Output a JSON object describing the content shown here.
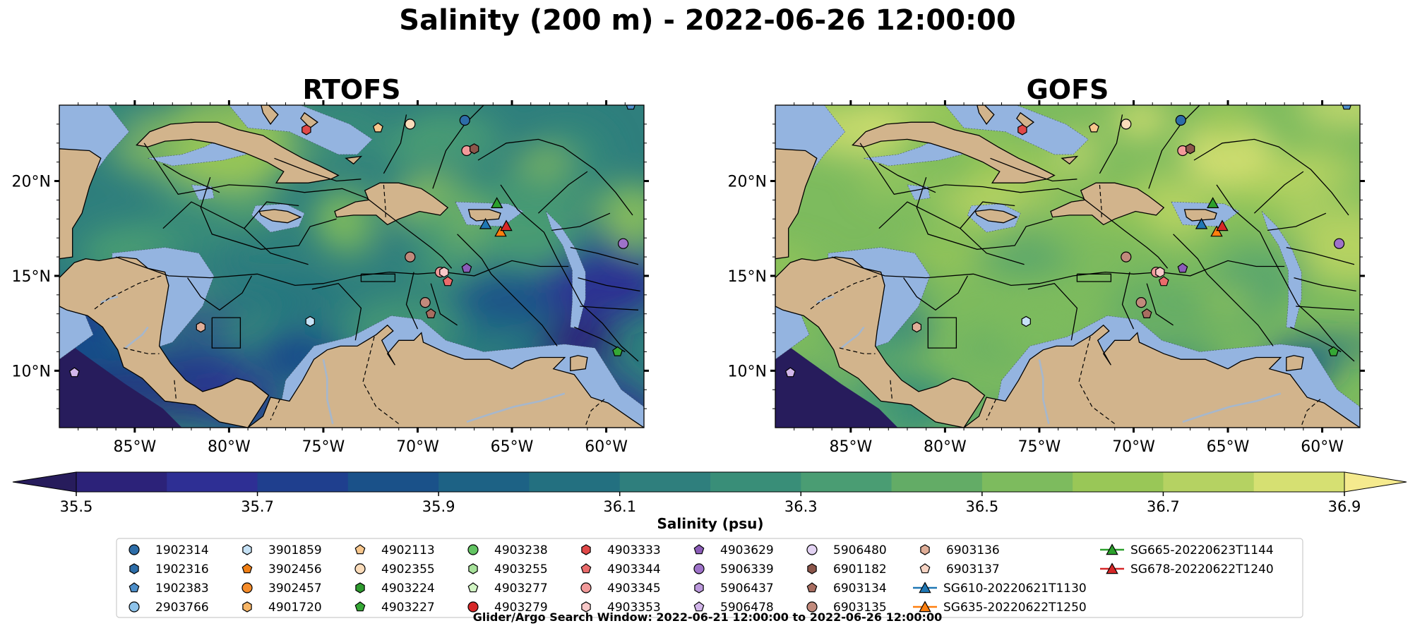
{
  "title": "Salinity (200 m) - 2022-06-26 12:00:00",
  "footer": "Glider/Argo Search Window: 2022-06-21 12:00:00 to 2022-06-26 12:00:00",
  "colors": {
    "land": "#d2b48c",
    "shelf": "#94b4e0",
    "ocean_deep": "#271c5c",
    "rivers": "#a6b7cc"
  },
  "chart_data": [
    {
      "type": "heatmap",
      "title": "RTOFS",
      "xlabel": "",
      "ylabel": "",
      "xlim": [
        -89,
        -58
      ],
      "ylim": [
        7,
        24
      ],
      "xticks": [
        -85,
        -80,
        -75,
        -70,
        -65,
        -60
      ],
      "xtick_labels": [
        "85°W",
        "80°W",
        "75°W",
        "70°W",
        "65°W",
        "60°W"
      ],
      "yticks": [
        10,
        15,
        20
      ],
      "ytick_labels": [
        "10°N",
        "15°N",
        "20°N"
      ],
      "grid": false
    },
    {
      "type": "heatmap",
      "title": "GOFS",
      "xlabel": "",
      "ylabel": "",
      "xlim": [
        -89,
        -58
      ],
      "ylim": [
        7,
        24
      ],
      "xticks": [
        -85,
        -80,
        -75,
        -70,
        -65,
        -60
      ],
      "xtick_labels": [
        "85°W",
        "80°W",
        "75°W",
        "70°W",
        "65°W",
        "60°W"
      ],
      "yticks": [
        10,
        15,
        20
      ],
      "ytick_labels": [
        "10°N",
        "15°N",
        "20°N"
      ],
      "grid": false
    }
  ],
  "colorbar": {
    "label": "Salinity (psu)",
    "min": 35.5,
    "max": 36.9,
    "step": 0.1,
    "ticks": [
      35.5,
      35.7,
      35.9,
      36.1,
      36.3,
      36.5,
      36.7,
      36.9
    ],
    "tick_labels": [
      "35.5",
      "35.7",
      "35.9",
      "36.1",
      "36.3",
      "36.5",
      "36.7",
      "36.9"
    ],
    "extend": "both",
    "colors": [
      "#2c2279",
      "#2e2f94",
      "#1f3f8e",
      "#1a5189",
      "#1d6285",
      "#237080",
      "#2f7f7d",
      "#398e78",
      "#4a9d73",
      "#63ac66",
      "#7dbb5e",
      "#99c757",
      "#b5d262",
      "#d6e072"
    ],
    "under_color": "#271c5c",
    "over_color": "#f5ea8e"
  },
  "legend": {
    "placement": "bottom",
    "ncol": 9,
    "entries": [
      {
        "label": "1902314",
        "marker": "circle",
        "color": "#2d6da8"
      },
      {
        "label": "1902316",
        "marker": "hexagon",
        "color": "#2d6da8"
      },
      {
        "label": "1902383",
        "marker": "pentagon",
        "color": "#4d8ec9"
      },
      {
        "label": "2903766",
        "marker": "circle",
        "color": "#8ec3ea"
      },
      {
        "label": "3901859",
        "marker": "hexagon",
        "color": "#c6e2f6"
      },
      {
        "label": "3902456",
        "marker": "pentagon",
        "color": "#f07f15"
      },
      {
        "label": "3902457",
        "marker": "circle",
        "color": "#f58c2a"
      },
      {
        "label": "4901720",
        "marker": "hexagon",
        "color": "#f7b566"
      },
      {
        "label": "4902113",
        "marker": "pentagon",
        "color": "#f8c78d"
      },
      {
        "label": "4902355",
        "marker": "circle",
        "color": "#fbdcba"
      },
      {
        "label": "4903224",
        "marker": "hexagon",
        "color": "#2e9b2e"
      },
      {
        "label": "4903227",
        "marker": "pentagon",
        "color": "#35a835"
      },
      {
        "label": "4903238",
        "marker": "circle",
        "color": "#62c462"
      },
      {
        "label": "4903255",
        "marker": "hexagon",
        "color": "#a7e29a"
      },
      {
        "label": "4903277",
        "marker": "pentagon",
        "color": "#d2f5c4"
      },
      {
        "label": "4903279",
        "marker": "circle",
        "color": "#d62728"
      },
      {
        "label": "4903333",
        "marker": "hexagon",
        "color": "#e04848"
      },
      {
        "label": "4903344",
        "marker": "pentagon",
        "color": "#ea6b6b"
      },
      {
        "label": "4903345",
        "marker": "circle",
        "color": "#f29a9a"
      },
      {
        "label": "4903353",
        "marker": "hexagon",
        "color": "#f8c8c8"
      },
      {
        "label": "4903629",
        "marker": "pentagon",
        "color": "#8b5cb8"
      },
      {
        "label": "5906339",
        "marker": "circle",
        "color": "#9e72c9"
      },
      {
        "label": "5906437",
        "marker": "hexagon",
        "color": "#bb98dc"
      },
      {
        "label": "5906478",
        "marker": "pentagon",
        "color": "#d2b6ea"
      },
      {
        "label": "5906480",
        "marker": "circle",
        "color": "#e3d3f3"
      },
      {
        "label": "6901182",
        "marker": "hexagon",
        "color": "#8c564b"
      },
      {
        "label": "6903134",
        "marker": "pentagon",
        "color": "#a86d60"
      },
      {
        "label": "6903135",
        "marker": "circle",
        "color": "#c18a7c"
      },
      {
        "label": "6903136",
        "marker": "hexagon",
        "color": "#e0ae98"
      },
      {
        "label": "6903137",
        "marker": "pentagon",
        "color": "#f7d4c4"
      },
      {
        "label": "SG610-20220621T1130",
        "marker": "triangle-line",
        "color": "#1f77b4"
      },
      {
        "label": "SG635-20220622T1250",
        "marker": "triangle-line",
        "color": "#ff7f0e"
      },
      {
        "label": "SG665-20220623T1144",
        "marker": "triangle-line",
        "color": "#2ca02c"
      },
      {
        "label": "SG678-20220622T1240",
        "marker": "triangle-line",
        "color": "#d62728"
      }
    ]
  },
  "observations": [
    {
      "id": "1902314",
      "lon": -67.5,
      "lat": 23.2
    },
    {
      "id": "1902383",
      "lon": -58.7,
      "lat": 24.0
    },
    {
      "id": "3901859",
      "lon": -75.7,
      "lat": 12.6
    },
    {
      "id": "4902113",
      "lon": -72.1,
      "lat": 22.8
    },
    {
      "id": "4902355",
      "lon": -70.4,
      "lat": 23.0
    },
    {
      "id": "4903227",
      "lon": -59.4,
      "lat": 11.0
    },
    {
      "id": "4903333",
      "lon": -75.9,
      "lat": 22.7
    },
    {
      "id": "4903344",
      "lon": -68.4,
      "lat": 14.7
    },
    {
      "id": "4903345",
      "lon": -67.4,
      "lat": 21.6
    },
    {
      "id": "4903345",
      "lon": -68.8,
      "lat": 15.2
    },
    {
      "id": "4903353",
      "lon": -68.6,
      "lat": 15.2
    },
    {
      "id": "4903629",
      "lon": -67.4,
      "lat": 15.4
    },
    {
      "id": "5906339",
      "lon": -59.1,
      "lat": 16.7
    },
    {
      "id": "5906478",
      "lon": -88.2,
      "lat": 9.9
    },
    {
      "id": "6901182",
      "lon": -67.0,
      "lat": 21.7
    },
    {
      "id": "6903134",
      "lon": -69.3,
      "lat": 13.0
    },
    {
      "id": "6903135",
      "lon": -69.6,
      "lat": 13.6
    },
    {
      "id": "6903135",
      "lon": -70.4,
      "lat": 16.0
    },
    {
      "id": "6903136",
      "lon": -81.5,
      "lat": 12.3
    },
    {
      "id": "SG610-20220621T1130",
      "lon": -66.4,
      "lat": 17.7
    },
    {
      "id": "SG635-20220622T1250",
      "lon": -65.6,
      "lat": 17.3
    },
    {
      "id": "SG665-20220623T1144",
      "lon": -65.8,
      "lat": 18.8
    },
    {
      "id": "SG678-20220622T1240",
      "lon": -65.3,
      "lat": 17.6
    }
  ]
}
